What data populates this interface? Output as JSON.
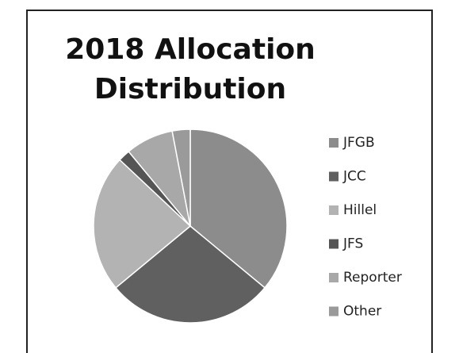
{
  "chart_data": {
    "type": "pie",
    "title": "2018 Allocation Distribution",
    "categories": [
      "JFGB",
      "JCC",
      "Hillel",
      "JFS",
      "Reporter",
      "Other"
    ],
    "values": [
      36,
      28,
      23,
      2,
      8,
      3
    ],
    "colors": [
      "#8c8c8c",
      "#606060",
      "#b3b3b3",
      "#555555",
      "#a8a8a8",
      "#9a9a9a"
    ],
    "legend": "right"
  }
}
